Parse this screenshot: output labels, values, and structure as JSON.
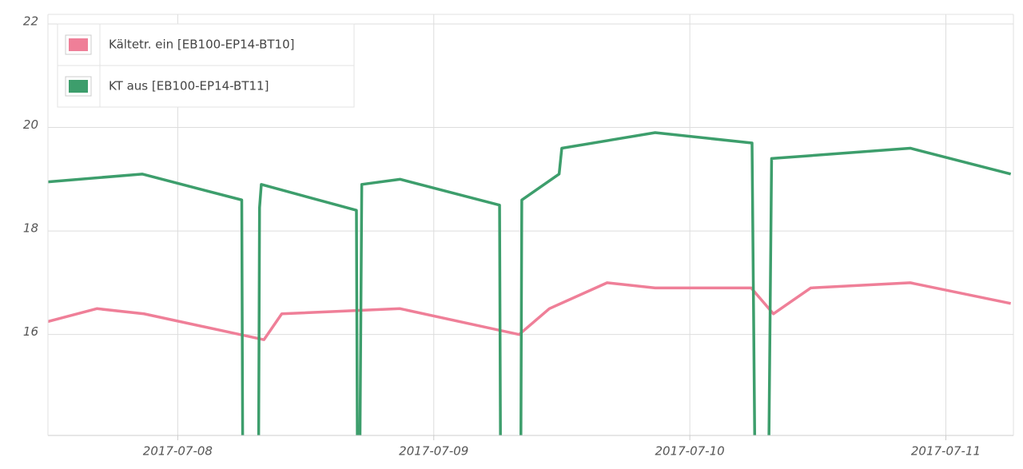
{
  "chart_data": {
    "type": "line",
    "xlim": [
      "2017-07-07T11:50",
      "2017-07-11T06:20"
    ],
    "ylim": [
      14.05,
      22
    ],
    "yticks": [
      16,
      18,
      20,
      22
    ],
    "xticks": [
      "2017-07-08",
      "2017-07-09",
      "2017-07-10",
      "2017-07-11"
    ],
    "grid": true,
    "legend": "upper left",
    "series": [
      {
        "name": "Kältetr. ein [EB100-EP14-BT10]",
        "color": "#ef7f98",
        "x": [
          "2017-07-07T11:50",
          "2017-07-07T16:25",
          "2017-07-07T20:50",
          "2017-07-08T05:50",
          "2017-07-08T08:05",
          "2017-07-08T09:45",
          "2017-07-08T20:50",
          "2017-07-09T08:00",
          "2017-07-09T10:50",
          "2017-07-09T16:15",
          "2017-07-09T20:45",
          "2017-07-10T05:45",
          "2017-07-10T07:50",
          "2017-07-10T11:20",
          "2017-07-10T20:40",
          "2017-07-11T06:05"
        ],
        "values": [
          16.25,
          16.5,
          16.4,
          16.0,
          15.9,
          16.4,
          16.5,
          16.0,
          16.5,
          17.0,
          16.9,
          16.9,
          16.4,
          16.9,
          17.0,
          16.6
        ]
      },
      {
        "name": "KT aus [EB100-EP14-BT11]",
        "color": "#3d9e6c",
        "x": [
          "2017-07-07T11:50",
          "2017-07-07T20:40",
          "2017-07-08T06:00",
          "2017-07-08T06:05",
          "2017-07-08T07:35",
          "2017-07-08T07:40",
          "2017-07-08T07:50",
          "2017-07-08T16:45",
          "2017-07-08T16:50",
          "2017-07-08T17:05",
          "2017-07-08T17:15",
          "2017-07-08T20:50",
          "2017-07-09T06:10",
          "2017-07-09T06:15",
          "2017-07-09T08:10",
          "2017-07-09T08:15",
          "2017-07-09T11:45",
          "2017-07-09T12:00",
          "2017-07-09T20:45",
          "2017-07-10T05:50",
          "2017-07-10T06:05",
          "2017-07-10T07:25",
          "2017-07-10T07:40",
          "2017-07-10T20:40",
          "2017-07-11T06:05"
        ],
        "values": [
          18.95,
          19.1,
          18.6,
          14,
          14,
          18.45,
          18.9,
          18.4,
          14,
          14,
          18.9,
          19.0,
          18.5,
          14,
          14,
          18.6,
          19.1,
          19.6,
          19.9,
          19.7,
          14,
          14,
          19.4,
          19.6,
          19.1
        ]
      }
    ]
  }
}
